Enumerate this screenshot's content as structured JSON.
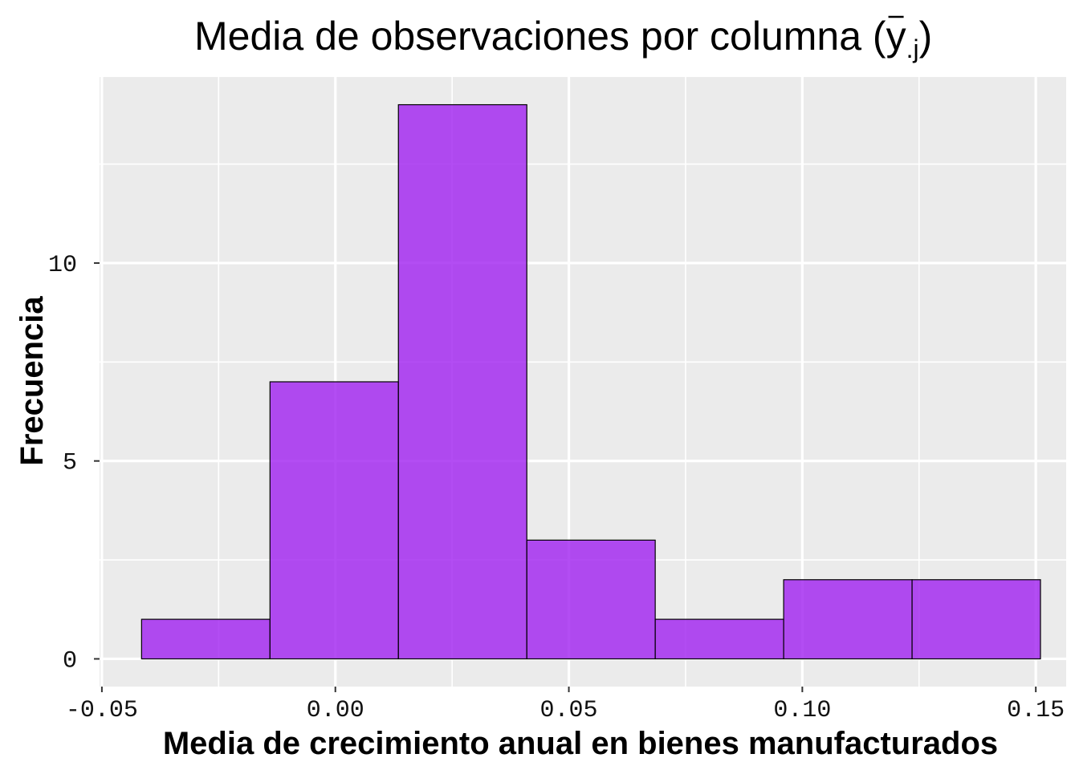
{
  "chart_data": {
    "type": "bar",
    "title": "Media de observaciones por columna (y",
    "title_sub": ".j",
    "title_close": ")",
    "xlabel": "Media de crecimiento anual en bienes manufacturados",
    "ylabel": "Frecuencia",
    "xlim": [
      -0.0505,
      0.1565
    ],
    "ylim": [
      -0.7,
      14.7
    ],
    "x_ticks": [
      -0.05,
      0.0,
      0.05,
      0.1,
      0.15
    ],
    "x_tick_labels": [
      "-0.05",
      "0.00",
      "0.05",
      "0.10",
      "0.15"
    ],
    "y_ticks": [
      0,
      5,
      10
    ],
    "y_tick_labels": [
      "0",
      "5",
      "10"
    ],
    "bins": [
      {
        "start": -0.0415,
        "end": -0.014,
        "count": 1
      },
      {
        "start": -0.014,
        "end": 0.0135,
        "count": 7
      },
      {
        "start": 0.0135,
        "end": 0.041,
        "count": 14
      },
      {
        "start": 0.041,
        "end": 0.0685,
        "count": 3
      },
      {
        "start": 0.0685,
        "end": 0.096,
        "count": 1
      },
      {
        "start": 0.096,
        "end": 0.1235,
        "count": 2
      },
      {
        "start": 0.1235,
        "end": 0.151,
        "count": 2
      }
    ],
    "grid": true,
    "colors": {
      "bar_fill": "#a020f0",
      "bar_fill_opacity": 0.8,
      "bar_stroke": "#000000",
      "panel_bg": "#ebebeb",
      "grid": "#ffffff"
    }
  }
}
